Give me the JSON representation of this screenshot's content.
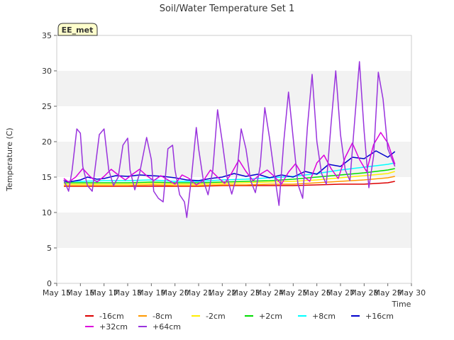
{
  "chart_data": {
    "type": "line",
    "title": "Soil/Water Temperature Set 1",
    "xlabel": "Time",
    "ylabel": "Temperature (C)",
    "badge": "EE_met",
    "xlim": [
      15,
      30
    ],
    "ylim": [
      0,
      35
    ],
    "x_ticks": [
      15,
      16,
      17,
      18,
      19,
      20,
      21,
      22,
      23,
      24,
      25,
      26,
      27,
      28,
      29,
      30
    ],
    "x_tick_labels": [
      "May 15",
      "May 16",
      "May 17",
      "May 18",
      "May 19",
      "May 20",
      "May 21",
      "May 22",
      "May 23",
      "May 24",
      "May 25",
      "May 26",
      "May 27",
      "May 28",
      "May 29",
      "May 30"
    ],
    "y_ticks": [
      0,
      5,
      10,
      15,
      20,
      25,
      30,
      35
    ],
    "y_tick_labels": [
      "0",
      "5",
      "10",
      "15",
      "20",
      "25",
      "30",
      "35"
    ],
    "grid": "horizontal bands",
    "legend_position": "bottom",
    "series": [
      {
        "name": "-16cm",
        "color": "#dd0000",
        "x": [
          15.3,
          16,
          17,
          18,
          19,
          20,
          21,
          22,
          23,
          24,
          25,
          26,
          27,
          28,
          29,
          29.3
        ],
        "y": [
          13.7,
          13.7,
          13.7,
          13.7,
          13.7,
          13.7,
          13.7,
          13.8,
          13.8,
          13.8,
          13.8,
          13.9,
          14.0,
          14.0,
          14.2,
          14.4
        ]
      },
      {
        "name": "-8cm",
        "color": "#ff9900",
        "x": [
          15.3,
          16,
          17,
          18,
          19,
          20,
          21,
          22,
          23,
          24,
          25,
          26,
          27,
          28,
          29,
          29.3
        ],
        "y": [
          13.8,
          13.8,
          13.8,
          13.8,
          13.9,
          13.8,
          13.8,
          13.9,
          13.9,
          14.0,
          14.0,
          14.2,
          14.4,
          14.6,
          14.9,
          15.1
        ]
      },
      {
        "name": "-2cm",
        "color": "#ffee00",
        "x": [
          15.3,
          16,
          17,
          18,
          19,
          20,
          21,
          22,
          23,
          24,
          25,
          26,
          27,
          28,
          29,
          29.3
        ],
        "y": [
          14.0,
          14.0,
          14.0,
          14.0,
          14.1,
          14.0,
          14.0,
          14.1,
          14.2,
          14.3,
          14.4,
          14.6,
          14.9,
          15.2,
          15.5,
          15.8
        ]
      },
      {
        "name": "+2cm",
        "color": "#00dd00",
        "x": [
          15.3,
          16,
          17,
          18,
          19,
          20,
          21,
          22,
          23,
          24,
          25,
          26,
          27,
          28,
          29,
          29.3
        ],
        "y": [
          14.2,
          14.2,
          14.2,
          14.2,
          14.3,
          14.2,
          14.2,
          14.3,
          14.4,
          14.5,
          14.7,
          15.0,
          15.3,
          15.6,
          16.0,
          16.2
        ]
      },
      {
        "name": "+8cm",
        "color": "#00ffff",
        "x": [
          15.3,
          16,
          17,
          18,
          19,
          20,
          21,
          22,
          23,
          24,
          25,
          26,
          27,
          28,
          29,
          29.3
        ],
        "y": [
          14.4,
          14.4,
          14.5,
          14.5,
          14.6,
          14.4,
          14.4,
          14.6,
          14.7,
          14.9,
          15.1,
          15.5,
          16.0,
          16.4,
          16.8,
          17.0
        ]
      },
      {
        "name": "+16cm",
        "color": "#0000cc",
        "x": [
          15.3,
          15.5,
          16,
          16.3,
          16.7,
          17,
          17.5,
          18,
          18.5,
          19,
          19.5,
          20,
          20.5,
          21,
          21.5,
          22,
          22.5,
          23,
          23.5,
          24,
          24.5,
          25,
          25.5,
          26,
          26.5,
          27,
          27.5,
          28,
          28.5,
          29,
          29.3
        ],
        "y": [
          14.5,
          14.3,
          14.6,
          15.0,
          14.7,
          14.8,
          15.2,
          15.1,
          15.3,
          15.2,
          15.1,
          14.9,
          14.6,
          14.5,
          14.8,
          15.0,
          15.5,
          15.1,
          15.4,
          14.9,
          15.3,
          15.0,
          15.8,
          15.4,
          16.8,
          16.5,
          17.8,
          17.6,
          18.7,
          17.8,
          18.6
        ]
      },
      {
        "name": "+32cm",
        "color": "#dd00dd",
        "x": [
          15.3,
          15.5,
          15.8,
          16.1,
          16.4,
          16.7,
          17,
          17.3,
          17.6,
          17.9,
          18.2,
          18.5,
          18.8,
          19.1,
          19.4,
          19.7,
          20,
          20.3,
          20.6,
          20.9,
          21.2,
          21.5,
          21.8,
          22.1,
          22.4,
          22.7,
          23,
          23.3,
          23.6,
          23.9,
          24.2,
          24.5,
          24.8,
          25.1,
          25.4,
          25.7,
          26,
          26.3,
          26.6,
          26.9,
          27.2,
          27.5,
          27.8,
          28.1,
          28.4,
          28.7,
          29,
          29.3
        ],
        "y": [
          14.8,
          14.3,
          15.0,
          16.2,
          15.1,
          14.3,
          15.1,
          16.1,
          15.3,
          14.6,
          15.4,
          16.1,
          15.2,
          14.5,
          15.2,
          14.6,
          14.0,
          15.3,
          14.8,
          13.9,
          14.5,
          16.0,
          15.0,
          14.1,
          15.6,
          17.4,
          15.8,
          14.5,
          15.4,
          16.0,
          15.1,
          14.0,
          15.7,
          16.9,
          15.2,
          14.4,
          17.0,
          18.1,
          16.2,
          14.8,
          17.8,
          19.8,
          17.5,
          15.8,
          19.6,
          21.3,
          19.8,
          16.8
        ]
      },
      {
        "name": "+64cm",
        "color": "#9933dd",
        "x": [
          15.3,
          15.5,
          15.65,
          15.85,
          16.0,
          16.1,
          16.3,
          16.5,
          16.8,
          17.0,
          17.2,
          17.4,
          17.6,
          17.8,
          18.0,
          18.1,
          18.3,
          18.5,
          18.8,
          19.0,
          19.1,
          19.3,
          19.5,
          19.7,
          19.9,
          20.0,
          20.2,
          20.4,
          20.5,
          20.7,
          20.9,
          21.0,
          21.2,
          21.4,
          21.6,
          21.8,
          22.0,
          22.2,
          22.4,
          22.6,
          22.8,
          23.0,
          23.2,
          23.4,
          23.6,
          23.8,
          24.0,
          24.2,
          24.4,
          24.6,
          24.8,
          25.0,
          25.2,
          25.4,
          25.6,
          25.8,
          26.0,
          26.2,
          26.4,
          26.6,
          26.8,
          27.0,
          27.2,
          27.4,
          27.6,
          27.8,
          28.0,
          28.2,
          28.4,
          28.6,
          28.8,
          29.0,
          29.3
        ],
        "y": [
          14.6,
          13.0,
          16.0,
          21.8,
          21.2,
          16.5,
          13.8,
          13.0,
          21.0,
          21.8,
          16.0,
          13.8,
          15.0,
          19.5,
          20.5,
          16.0,
          13.2,
          15.5,
          20.6,
          17.5,
          13.0,
          12.0,
          11.5,
          19.0,
          19.5,
          16.0,
          12.5,
          11.5,
          9.3,
          15.0,
          22.0,
          19.0,
          14.5,
          12.5,
          16.0,
          24.5,
          20.0,
          15.0,
          12.6,
          15.0,
          21.8,
          19.0,
          14.5,
          12.8,
          16.5,
          24.8,
          20.5,
          15.5,
          11.0,
          20.0,
          27.0,
          20.5,
          14.0,
          12.0,
          22.0,
          29.5,
          20.0,
          15.5,
          14.0,
          22.5,
          30.0,
          21.0,
          16.0,
          14.5,
          23.0,
          31.3,
          21.5,
          13.5,
          18.0,
          29.8,
          26.0,
          19.0,
          16.5
        ]
      }
    ]
  }
}
